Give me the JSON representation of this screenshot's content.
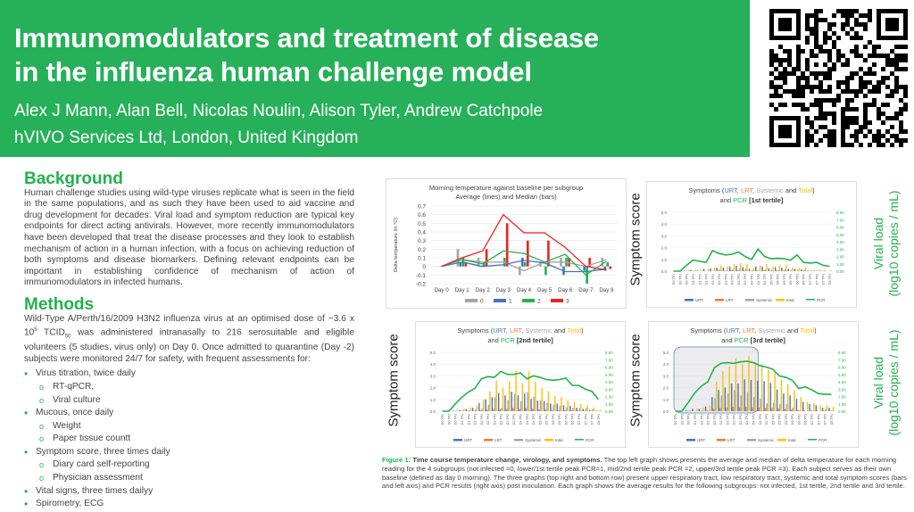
{
  "header": {
    "title_line1": "Immunomodulators and treatment of disease",
    "title_line2": "in the influenza human challenge model",
    "authors": "Alex J Mann, Alan Bell, Nicolas Noulin, Alison Tyler, Andrew Catchpole",
    "affiliation": "hVIVO Services Ltd, London, United Kingdom"
  },
  "colors": {
    "banner": "#27b05a",
    "heading": "#22b24c"
  },
  "background": {
    "heading": "Background",
    "text": "Human challenge studies using wild-type viruses replicate what is seen in the field in the same populations, and as such they have been used to aid vaccine and drug development for decades. Viral load and symptom reduction are typical key endpoints for direct acting antivirals. However, more recently immunomodulators have been developed that treat the disease processes and they look to establish mechanism of action in a human infection, with a focus on achieving reduction of both symptoms and disease biomarkers. Defining relevant endpoints can be important in establishing confidence of mechanism of action of immunomodulators in infected humans."
  },
  "methods": {
    "heading": "Methods",
    "text_a": "Wild-Type A/Perth/16/2009 H3N2 influenza virus at an optimised dose of ~3.6 x 10",
    "sup": "5",
    "text_b": " TCID",
    "sub": "50",
    "text_c": " was administered intranasally to 216 serosuitable and eligible volunteers (5 studies, virus only) on Day 0. Once admitted to quarantine (Day -2) subjects were monitored 24/7 for safety, with frequent assessments for:",
    "items": [
      {
        "t": "Virus titration, twice daily",
        "l": 1
      },
      {
        "t": "RT-qPCR,",
        "l": 2
      },
      {
        "t": "Viral culture",
        "l": 2
      },
      {
        "t": "Mucous, once daily",
        "l": 1
      },
      {
        "t": "Weight",
        "l": 2
      },
      {
        "t": "Paper tissue countt",
        "l": 2
      },
      {
        "t": "Symptom score, three times daily",
        "l": 1
      },
      {
        "t": "Diary card self-reporting",
        "l": 2
      },
      {
        "t": "Physician assessment",
        "l": 2
      },
      {
        "t": "Vital signs, three times dailyy",
        "l": 1
      },
      {
        "t": "Spirometry, ECG",
        "l": 1
      }
    ]
  },
  "caption": {
    "label": "Figure 1:",
    "bold": " Time course temperature change, virology, and symptoms.",
    "text": " The top left graph shows presents the average and median of delta temperature for each morning reading for the 4 subgroups (not infected =0, lower/1st tertile peak PCR=1, mid/2nd tertile peak PCR =2, upper/3rd tertile peak PCR =3). Each subject serves as their own baseline (defined as day 0 morning). The three graphs (top right and bottom row) present upper respiratory tract, low respiratory tract, systemic and total  symptom scores (bars and left axis) and PCR results (right axis) post inoculation. Each graph shows the average results for the following subgroups: not infected, 1st tertile, 2nd tertile and 3rd tertile."
  },
  "axis_labels": {
    "symptom": "Symptom score",
    "viral_1": "Viral load",
    "viral_2": "(log10 copies / mL)"
  },
  "chart_data": [
    {
      "type": "line",
      "title": [
        "Morning temperature against baseline per subgroup",
        "Average (lines) and Median (bars)"
      ],
      "ylabel": "Delta temperature (in °C)",
      "ylim": [
        -0.2,
        0.7
      ],
      "yticks": [
        -0.2,
        -0.1,
        0,
        0.1,
        0.2,
        0.3,
        0.4,
        0.5,
        0.6,
        0.7
      ],
      "grid": true,
      "legend": "bottom",
      "categories": [
        "Day 0",
        "Day 1",
        "Day 2",
        "Day 3",
        "Day 4",
        "Day 5",
        "Day 6",
        "Day 7",
        "Day 8"
      ],
      "series": [
        {
          "name": "0",
          "color": "#a5a5a5",
          "average": [
            0,
            0.08,
            0.05,
            0.05,
            -0.05,
            0.05,
            0.05,
            0,
            0.08
          ],
          "median": [
            0,
            0.2,
            0.1,
            0,
            -0.1,
            0.05,
            0.1,
            0,
            0.1
          ]
        },
        {
          "name": "1",
          "color": "#4472c4",
          "average": [
            0,
            0.05,
            0,
            0.02,
            0.07,
            0.04,
            -0.06,
            -0.06,
            -0.03
          ],
          "median": [
            0,
            0.05,
            0,
            0,
            0.1,
            0,
            -0.1,
            -0.05,
            -0.05
          ]
        },
        {
          "name": "2",
          "color": "#22b24c",
          "average": [
            0,
            0.08,
            0.03,
            0.18,
            0.15,
            0.05,
            0.14,
            -0.1,
            0.06
          ],
          "median": [
            0,
            0.1,
            0.05,
            0.1,
            0.05,
            -0.1,
            0.1,
            -0.2,
            0.05
          ]
        },
        {
          "name": "3",
          "color": "#ee2222",
          "average": [
            0,
            0.1,
            0.18,
            0.6,
            0.39,
            0.39,
            0.22,
            0,
            -0.04
          ],
          "median": [
            0,
            0.05,
            0.2,
            0.5,
            0.3,
            0.3,
            0.1,
            0.1,
            -0.03
          ]
        }
      ]
    },
    {
      "type": "bar+line",
      "tertile": "[1st tertile]",
      "ylim": [
        0,
        5
      ],
      "y2lim": [
        0,
        8
      ],
      "legend": "bottom",
      "grid": true,
      "total": [
        0,
        0,
        0.1,
        0.15,
        0.1,
        0.2,
        0.3,
        0.5,
        0.4,
        0.6,
        0.7,
        0.6,
        0.3,
        0.5,
        0.6,
        0.4,
        0.5,
        0.5,
        0.3,
        0.3,
        0.3,
        0.1,
        0.1,
        0.1,
        0.05
      ],
      "urt": [
        0,
        0,
        0.05,
        0.1,
        0.05,
        0.2,
        0.25,
        0.3,
        0.3,
        0.4,
        0.45,
        0.35,
        0.2,
        0.4,
        0.4,
        0.25,
        0.35,
        0.3,
        0.2,
        0.2,
        0.15,
        0.05,
        0.05,
        0.05,
        0
      ],
      "pcr": [
        0,
        0,
        0.8,
        1.5,
        1.35,
        1.2,
        2.8,
        2.4,
        2.2,
        2.3,
        2.6,
        2.0,
        1.6,
        3.0,
        2.0,
        1.7,
        1.75,
        1.7,
        1.5,
        2.2,
        1.2,
        1.1,
        1.2,
        0.8,
        0.65
      ]
    },
    {
      "type": "bar+line",
      "tertile": "[2nd tertile]",
      "ylim": [
        0,
        5
      ],
      "y2lim": [
        0,
        8
      ],
      "legend": "bottom",
      "grid": true,
      "total": [
        0,
        0,
        0.1,
        0.2,
        0.3,
        0.5,
        1.0,
        1.7,
        2.6,
        2.0,
        2.5,
        3.4,
        2.4,
        3.4,
        2.5,
        2.0,
        1.7,
        1.3,
        1.2,
        0.9,
        0.8,
        0.6,
        0.5,
        0.3,
        0.1
      ],
      "urt": [
        0,
        0,
        0.05,
        0.1,
        0.2,
        0.3,
        0.7,
        1.0,
        1.2,
        1.55,
        1.35,
        1.65,
        1.35,
        1.5,
        1.05,
        0.9,
        0.85,
        0.65,
        0.65,
        0.5,
        0.45,
        0.3,
        0.2,
        0.1,
        0.05
      ],
      "pcr": [
        0,
        0,
        1.0,
        1.9,
        2.6,
        3.1,
        4.4,
        4.7,
        4.6,
        5.4,
        5.0,
        5.0,
        5.2,
        4.4,
        4.8,
        4.6,
        4.3,
        4.2,
        4.3,
        4.5,
        3.5,
        3.5,
        3.0,
        2.7,
        1.6
      ]
    },
    {
      "type": "bar+line",
      "tertile": "[3rd tertile]",
      "ylim": [
        0,
        5
      ],
      "y2lim": [
        0,
        8
      ],
      "legend": "bottom",
      "grid": true,
      "total": [
        0,
        0,
        0.1,
        0.2,
        0.3,
        0.5,
        2.5,
        3.4,
        3.8,
        4.5,
        4.0,
        4.7,
        4.2,
        4.0,
        3.5,
        3.4,
        2.7,
        2.3,
        1.8,
        1.2,
        0.8,
        0.7,
        0.5,
        0.5,
        0.4
      ],
      "urt": [
        0,
        0,
        0.05,
        0.2,
        0.2,
        0.4,
        1.2,
        1.8,
        2.0,
        2.35,
        2.35,
        2.7,
        2.65,
        2.6,
        2.55,
        2.4,
        1.85,
        1.5,
        1.35,
        1.05,
        0.8,
        0.6,
        0.5,
        0.3,
        0.3
      ],
      "pcr": [
        0,
        0,
        1.2,
        2.5,
        3.4,
        4.0,
        5.9,
        6.5,
        6.6,
        6.5,
        6.7,
        6.8,
        6.6,
        6.2,
        6.0,
        5.7,
        4.8,
        4.6,
        4.2,
        3.1,
        3.3,
        2.9,
        2.4,
        2.3,
        2.3
      ]
    }
  ],
  "symptom_chart": {
    "title_parts": [
      [
        "Symptoms (",
        "#444"
      ],
      [
        "URT",
        "#4472c4"
      ],
      [
        ", ",
        "#444"
      ],
      [
        "LRT",
        "#ed7d31"
      ],
      [
        ", ",
        "#444"
      ],
      [
        "Systemic",
        "#a5a5a5"
      ],
      [
        " and ",
        "#444"
      ],
      [
        "Total",
        "#ffc000"
      ],
      [
        ")",
        "#444"
      ]
    ],
    "title2_a": "and ",
    "title2_pcr": "PCR",
    "categories": [
      "D0 TP1",
      "D0 TP2",
      "D0 TP3",
      "D1 TP1",
      "D1 TP2",
      "D1 TP3",
      "D2 TP1",
      "D2 TP2",
      "D2 TP3",
      "D3 TP1",
      "D3 TP2",
      "D3 TP3",
      "D4 TP1",
      "D4 TP2",
      "D4 TP3",
      "D5 TP1",
      "D5 TP2",
      "D5 TP3",
      "D6 TP1",
      "D6 TP2",
      "D6 TP3",
      "D7 TP1",
      "D7 TP2",
      "D7 TP3",
      "D8 TP1"
    ],
    "legend": [
      [
        "URT",
        "#4472c4"
      ],
      [
        "LRT",
        "#ed7d31"
      ],
      [
        "Systemic",
        "#a5a5a5"
      ],
      [
        "total",
        "#ffc000"
      ],
      [
        "PCR",
        "#22b24c"
      ]
    ]
  }
}
